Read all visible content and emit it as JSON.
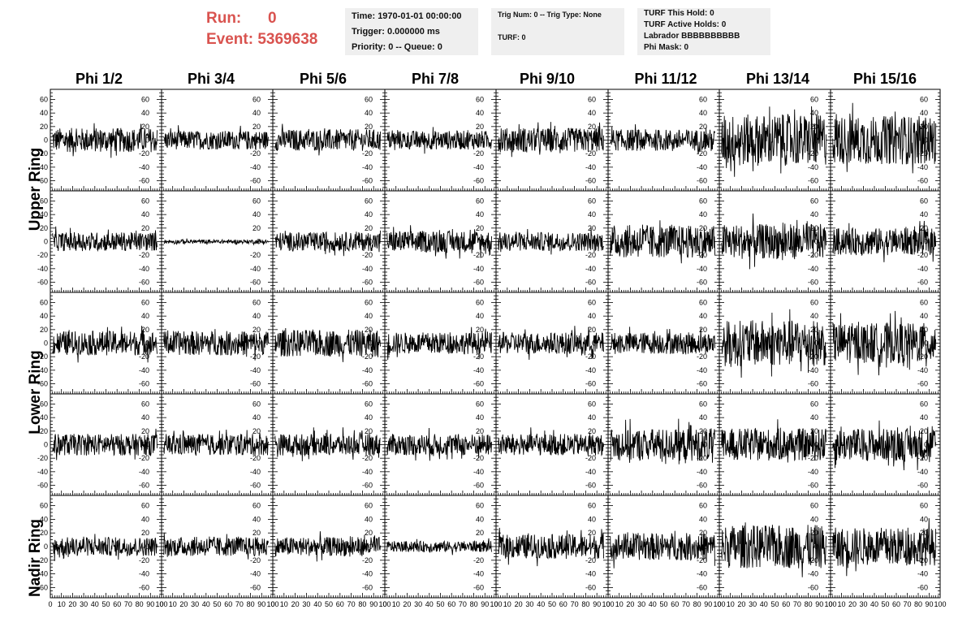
{
  "run": {
    "run_label": "Run:",
    "run_value": "0",
    "event_label": "Event:",
    "event_value": "5369638"
  },
  "info_time": {
    "time": "Time: 1970-01-01 00:00:00",
    "trigger": "Trigger: 0.000000 ms",
    "priority": "Priority: 0 -- Queue: 0"
  },
  "info_trig": {
    "trig": "Trig Num: 0 -- Trig Type: None",
    "turf": "TURF: 0"
  },
  "info_turf": {
    "this_hold": "TURF This Hold: 0",
    "active_holds": "TURF Active Holds: 0",
    "labrador": "Labrador BBBBBBBBBB",
    "phi_mask": "Phi Mask: 0"
  },
  "phi_headers": [
    "Phi 1/2",
    "Phi 3/4",
    "Phi 5/6",
    "Phi 7/8",
    "Phi 9/10",
    "Phi 11/12",
    "Phi 13/14",
    "Phi 15/16"
  ],
  "ring_labels": [
    "Upper Ring",
    "Lower Ring",
    "Nadir Ring"
  ],
  "colors": {
    "run_text": "#d9534f",
    "info_bg": "#efefef",
    "trace": "#000000"
  },
  "chart_data": {
    "type": "line",
    "grid_rows": 5,
    "grid_cols": 8,
    "y_ticks": [
      "60",
      "40",
      "20",
      "0",
      "-20",
      "-40",
      "-60"
    ],
    "y_tick_values": [
      60,
      40,
      20,
      0,
      -20,
      -40,
      -60
    ],
    "ylim": [
      -75,
      75
    ],
    "xlim": [
      0,
      100
    ],
    "x_tick_labels": [
      "0",
      "10",
      "20",
      "30",
      "40",
      "50",
      "60",
      "70",
      "80",
      "90",
      "100"
    ],
    "x_tick_values": [
      0,
      10,
      20,
      30,
      40,
      50,
      60,
      70,
      80,
      90,
      100
    ],
    "trace_amplitudes": [
      [
        18,
        14,
        16,
        14,
        18,
        16,
        38,
        36
      ],
      [
        14,
        3,
        14,
        16,
        14,
        24,
        26,
        20
      ],
      [
        18,
        18,
        20,
        16,
        16,
        16,
        34,
        30
      ],
      [
        16,
        16,
        16,
        16,
        16,
        24,
        24,
        24
      ],
      [
        14,
        14,
        14,
        8,
        18,
        20,
        32,
        28
      ]
    ],
    "grid": false
  }
}
